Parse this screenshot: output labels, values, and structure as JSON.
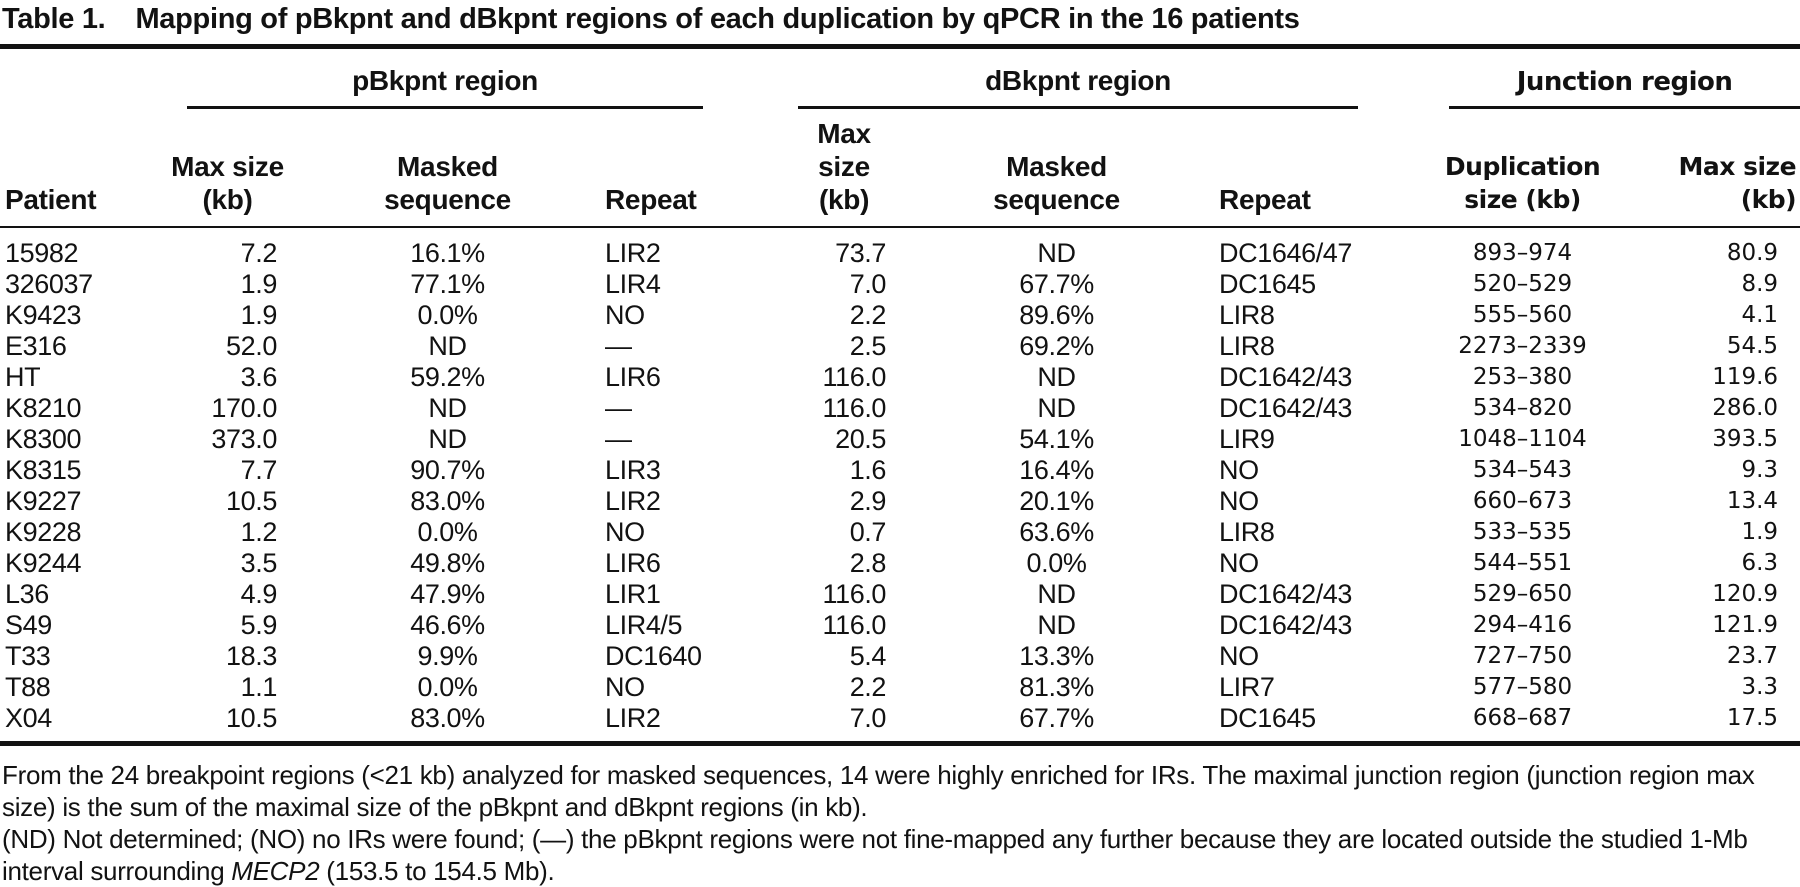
{
  "colors": {
    "background": "#ffffff",
    "text": "#121212",
    "rule": "#121212"
  },
  "caption": {
    "label": "Table 1.",
    "text": "Mapping of pBkpnt and dBkpnt regions of each duplication by qPCR in the 16 patients"
  },
  "table": {
    "groups": [
      {
        "label": "pBkpnt region"
      },
      {
        "label": "dBkpnt region"
      },
      {
        "label": "Junction region"
      }
    ],
    "columns": [
      "Patient",
      "Max size\n(kb)",
      "Masked\nsequence",
      "Repeat",
      "Max size\n(kb)",
      "Masked\nsequence",
      "Repeat",
      "Duplication\nsize (kb)",
      "Max size\n(kb)"
    ],
    "rows": [
      [
        "15982",
        "7.2",
        "16.1%",
        "LIR2",
        "73.7",
        "ND",
        "DC1646/47",
        "893–974",
        "80.9"
      ],
      [
        "326037",
        "1.9",
        "77.1%",
        "LIR4",
        "7.0",
        "67.7%",
        "DC1645",
        "520–529",
        "8.9"
      ],
      [
        "K9423",
        "1.9",
        "0.0%",
        "NO",
        "2.2",
        "89.6%",
        "LIR8",
        "555–560",
        "4.1"
      ],
      [
        "E316",
        "52.0",
        "ND",
        "—",
        "2.5",
        "69.2%",
        "LIR8",
        "2273–2339",
        "54.5"
      ],
      [
        "HT",
        "3.6",
        "59.2%",
        "LIR6",
        "116.0",
        "ND",
        "DC1642/43",
        "253–380",
        "119.6"
      ],
      [
        "K8210",
        "170.0",
        "ND",
        "—",
        "116.0",
        "ND",
        "DC1642/43",
        "534–820",
        "286.0"
      ],
      [
        "K8300",
        "373.0",
        "ND",
        "—",
        "20.5",
        "54.1%",
        "LIR9",
        "1048–1104",
        "393.5"
      ],
      [
        "K8315",
        "7.7",
        "90.7%",
        "LIR3",
        "1.6",
        "16.4%",
        "NO",
        "534–543",
        "9.3"
      ],
      [
        "K9227",
        "10.5",
        "83.0%",
        "LIR2",
        "2.9",
        "20.1%",
        "NO",
        "660–673",
        "13.4"
      ],
      [
        "K9228",
        "1.2",
        "0.0%",
        "NO",
        "0.7",
        "63.6%",
        "LIR8",
        "533–535",
        "1.9"
      ],
      [
        "K9244",
        "3.5",
        "49.8%",
        "LIR6",
        "2.8",
        "0.0%",
        "NO",
        "544–551",
        "6.3"
      ],
      [
        "L36",
        "4.9",
        "47.9%",
        "LIR1",
        "116.0",
        "ND",
        "DC1642/43",
        "529–650",
        "120.9"
      ],
      [
        "S49",
        "5.9",
        "46.6%",
        "LIR4/5",
        "116.0",
        "ND",
        "DC1642/43",
        "294–416",
        "121.9"
      ],
      [
        "T33",
        "18.3",
        "9.9%",
        "DC1640",
        "5.4",
        "13.3%",
        "NO",
        "727–750",
        "23.7"
      ],
      [
        "T88",
        "1.1",
        "0.0%",
        "NO",
        "2.2",
        "81.3%",
        "LIR7",
        "577–580",
        "3.3"
      ],
      [
        "X04",
        "10.5",
        "83.0%",
        "LIR2",
        "7.0",
        "67.7%",
        "DC1645",
        "668–687",
        "17.5"
      ]
    ]
  },
  "footnotes": {
    "note1": "From the 24 breakpoint regions (<21 kb) analyzed for masked sequences, 14 were highly enriched for IRs. The maximal junction region (junction region max size) is the sum of the maximal size of the pBkpnt and dBkpnt regions (in kb).",
    "note2_pre": "(ND) Not determined; (NO) no IRs were found; (—) the pBkpnt regions were not fine-mapped any further because they are located outside the studied 1-Mb interval surrounding ",
    "note2_italic": "MECP2",
    "note2_post": " (153.5 to 154.5 Mb)."
  }
}
